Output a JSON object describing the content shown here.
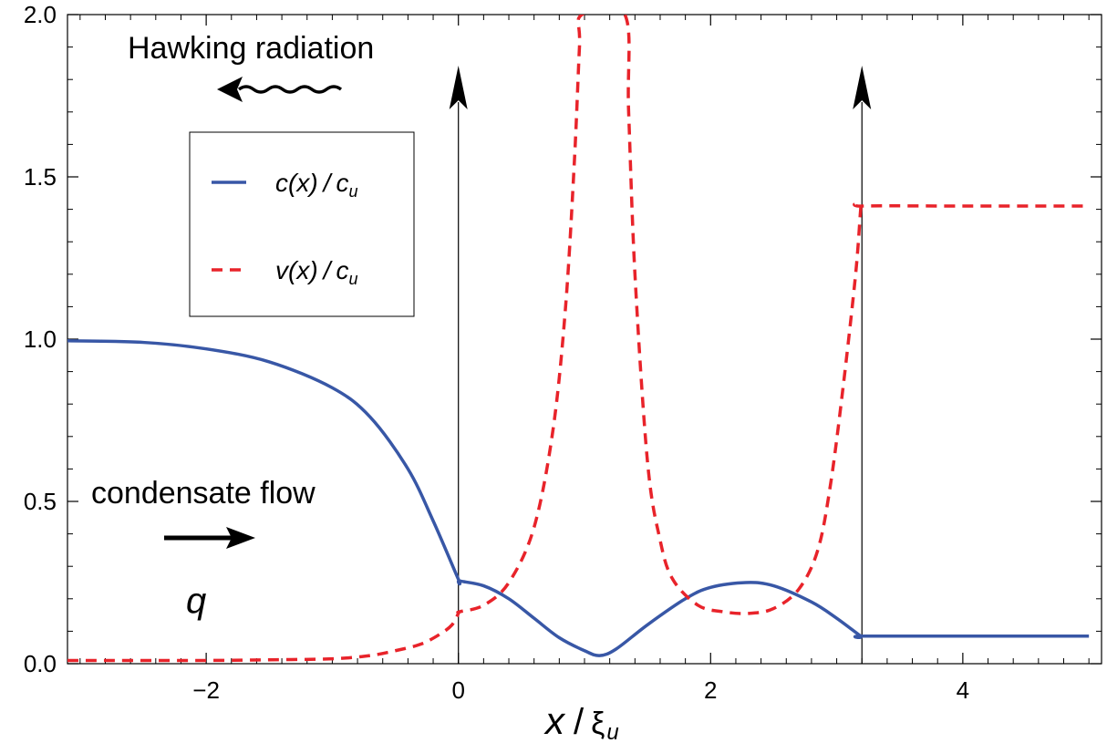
{
  "chart_data": {
    "type": "line",
    "xlabel": "x / ξ_u",
    "xlabel_main": "x",
    "xlabel_sep": "/",
    "xlabel_sym": "ξ",
    "xlabel_sub": "u",
    "ylabel": "",
    "xlim": [
      -3.1,
      5.1
    ],
    "ylim": [
      0,
      2.0
    ],
    "x_ticks": [
      -2,
      0,
      2,
      4
    ],
    "x_tick_labels": [
      "−2",
      "0",
      "2",
      "4"
    ],
    "y_ticks": [
      0,
      0.5,
      1.0,
      1.5,
      2.0
    ],
    "y_tick_labels": [
      "0.0",
      "0.5",
      "1.0",
      "1.5",
      "2.0"
    ],
    "grid": false,
    "legend_position": "upper-left",
    "series": [
      {
        "name": "c(x) / c_u",
        "legend_main": "c(x)",
        "legend_sub": "u",
        "style": "solid",
        "color": "#3857a6",
        "x": [
          -3.1,
          -2.5,
          -2.0,
          -1.5,
          -1.0,
          -0.7,
          -0.4,
          -0.2,
          0.0,
          0.01,
          0.2,
          0.4,
          0.6,
          0.8,
          1.0,
          1.12,
          1.25,
          1.5,
          1.8,
          2.0,
          2.28,
          2.5,
          2.8,
          3.0,
          3.19,
          3.2,
          4.0,
          5.0
        ],
        "y": [
          0.995,
          0.99,
          0.97,
          0.93,
          0.85,
          0.76,
          0.6,
          0.44,
          0.26,
          0.255,
          0.24,
          0.2,
          0.14,
          0.08,
          0.04,
          0.025,
          0.045,
          0.12,
          0.2,
          0.235,
          0.25,
          0.24,
          0.19,
          0.14,
          0.085,
          0.085,
          0.085,
          0.085
        ]
      },
      {
        "name": "v(x) / c_u",
        "legend_main": "v(x)",
        "legend_sub": "u",
        "style": "dashed",
        "color": "#e8232a",
        "x": [
          -3.1,
          -2.0,
          -1.5,
          -1.0,
          -0.7,
          -0.5,
          -0.3,
          -0.15,
          -0.05,
          0.0,
          0.01,
          0.2,
          0.4,
          0.6,
          0.75,
          0.85,
          0.92,
          0.96,
          0.98,
          1.32,
          1.35,
          1.4,
          1.5,
          1.6,
          1.7,
          1.9,
          2.1,
          2.3,
          2.5,
          2.7,
          2.85,
          2.95,
          3.05,
          3.15,
          3.19,
          3.2,
          4.0,
          5.0
        ],
        "y": [
          0.01,
          0.01,
          0.012,
          0.015,
          0.025,
          0.04,
          0.06,
          0.09,
          0.12,
          0.155,
          0.16,
          0.18,
          0.25,
          0.42,
          0.72,
          1.1,
          1.55,
          1.9,
          2.0,
          2.0,
          1.7,
          1.2,
          0.62,
          0.38,
          0.26,
          0.18,
          0.16,
          0.155,
          0.17,
          0.23,
          0.35,
          0.55,
          0.85,
          1.2,
          1.4,
          1.41,
          1.41,
          1.41
        ]
      }
    ],
    "vertical_arrows_x": [
      0,
      3.2
    ],
    "annotations": {
      "hawking": "Hawking radiation",
      "condensate": "condensate flow",
      "q": "q"
    }
  }
}
